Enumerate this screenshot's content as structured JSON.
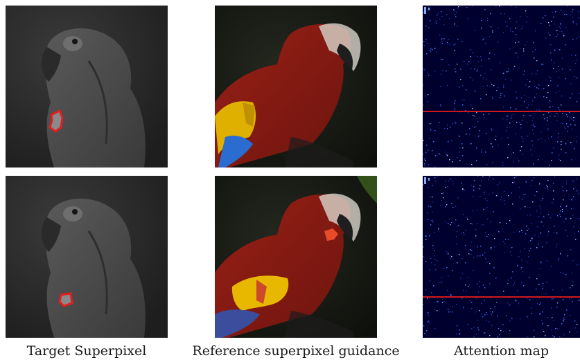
{
  "captions": {
    "target": "Target Superpixel",
    "reference": "Reference superpixel guidance",
    "attention": "Attention map"
  },
  "colors": {
    "outline_red": "#e02020",
    "attention_line": "#d01818",
    "attention_bg": "#00002e",
    "attention_dot": "#3c7cff",
    "highlight_yellow": "#f0c000",
    "highlight_blue": "#2a6cd0",
    "parrot_red": "#8a1a12"
  }
}
